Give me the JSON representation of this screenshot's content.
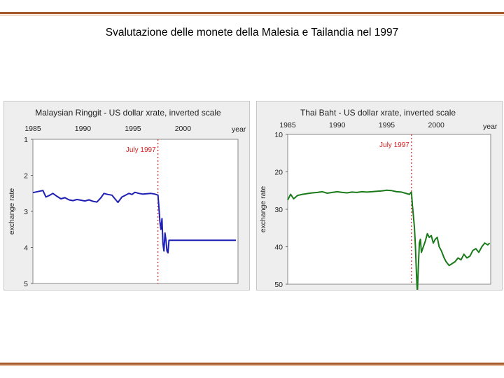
{
  "slide": {
    "title": "Svalutazione delle monete della Malesia e Tailandia nel 1997"
  },
  "colors": {
    "rule_dark": "#a65a2a",
    "rule_light": "#d9956a",
    "ringgit_line": "#1f1fb4",
    "baht_line": "#1a7a1a",
    "event_line": "#d62020",
    "panel_bg": "#eeeeee"
  },
  "chart_data": [
    {
      "type": "line",
      "title": "Malaysian Ringgit - US dollar xrate, inverted scale",
      "xlabel": "year",
      "ylabel": "exchange rate",
      "x_ticks": [
        "1985",
        "1990",
        "1995",
        "2000"
      ],
      "y_ticks": [
        "1",
        "2",
        "3",
        "4",
        "5"
      ],
      "xlim": [
        1985,
        2005.5
      ],
      "ylim": [
        1,
        5
      ],
      "y_inverted": true,
      "grid": false,
      "annotation": {
        "text": "July 1997",
        "x": 1997.5
      },
      "series": [
        {
          "x": [
            1985.0,
            1985.5,
            1986.0,
            1986.3,
            1986.7,
            1987.0,
            1987.4,
            1987.8,
            1988.2,
            1988.6,
            1989.0,
            1989.4,
            1989.8,
            1990.2,
            1990.6,
            1991.0,
            1991.4,
            1991.8,
            1992.1,
            1992.5,
            1992.9,
            1993.2,
            1993.5,
            1993.9,
            1994.2,
            1994.6,
            1994.9,
            1995.2,
            1995.6,
            1996.0,
            1996.4,
            1996.8,
            1997.2,
            1997.5,
            1997.6,
            1997.7,
            1997.8,
            1997.9,
            1998.0,
            1998.1,
            1998.2,
            1998.3,
            1998.4,
            1998.5,
            1998.6,
            1998.7,
            1998.8,
            1999.0,
            2000.0,
            2001.0,
            2002.0,
            2003.0,
            2004.0,
            2005.3
          ],
          "y": [
            2.48,
            2.45,
            2.42,
            2.6,
            2.55,
            2.5,
            2.58,
            2.65,
            2.62,
            2.68,
            2.7,
            2.67,
            2.69,
            2.71,
            2.68,
            2.72,
            2.74,
            2.62,
            2.5,
            2.53,
            2.55,
            2.65,
            2.75,
            2.6,
            2.56,
            2.5,
            2.53,
            2.47,
            2.5,
            2.52,
            2.51,
            2.5,
            2.52,
            2.55,
            2.9,
            3.3,
            3.5,
            3.2,
            3.9,
            4.1,
            3.6,
            3.8,
            4.1,
            4.15,
            3.8,
            3.8,
            3.8,
            3.8,
            3.8,
            3.8,
            3.8,
            3.8,
            3.8,
            3.8
          ]
        }
      ]
    },
    {
      "type": "line",
      "title": "Thai Baht - US dollar xrate, inverted scale",
      "xlabel": "year",
      "ylabel": "exchange rate",
      "x_ticks": [
        "1985",
        "1990",
        "1995",
        "2000"
      ],
      "y_ticks": [
        "10",
        "20",
        "30",
        "40",
        "50"
      ],
      "xlim": [
        1985,
        2005.5
      ],
      "ylim": [
        10,
        50
      ],
      "y_inverted": true,
      "grid": false,
      "annotation": {
        "text": "July 1997",
        "x": 1997.5
      },
      "series": [
        {
          "x": [
            1985.0,
            1985.3,
            1985.6,
            1986.0,
            1986.5,
            1987.0,
            1987.5,
            1988.0,
            1988.5,
            1989.0,
            1989.5,
            1990.0,
            1990.5,
            1991.0,
            1991.5,
            1992.0,
            1992.5,
            1993.0,
            1993.5,
            1994.0,
            1994.5,
            1995.0,
            1995.5,
            1996.0,
            1996.5,
            1997.0,
            1997.3,
            1997.45,
            1997.5,
            1997.6,
            1997.7,
            1997.8,
            1997.9,
            1998.0,
            1998.05,
            1998.1,
            1998.2,
            1998.3,
            1998.4,
            1998.5,
            1998.7,
            1998.9,
            1999.1,
            1999.3,
            1999.5,
            1999.7,
            1999.9,
            2000.1,
            2000.3,
            2000.5,
            2000.8,
            2001.0,
            2001.3,
            2001.6,
            2001.9,
            2002.2,
            2002.5,
            2002.8,
            2003.1,
            2003.4,
            2003.7,
            2004.0,
            2004.3,
            2004.6,
            2004.9,
            2005.2,
            2005.4
          ],
          "y": [
            27.5,
            26.0,
            27.2,
            26.3,
            26.0,
            25.8,
            25.6,
            25.5,
            25.3,
            25.7,
            25.5,
            25.3,
            25.5,
            25.6,
            25.4,
            25.5,
            25.3,
            25.4,
            25.3,
            25.2,
            25.1,
            24.9,
            25.0,
            25.3,
            25.4,
            25.8,
            26.0,
            25.5,
            25.5,
            29.0,
            32.0,
            35.0,
            40.0,
            47.0,
            50.0,
            52.0,
            45.0,
            39.0,
            38.0,
            41.5,
            40.0,
            38.5,
            36.5,
            37.5,
            37.0,
            39.0,
            38.0,
            37.5,
            40.0,
            41.0,
            43.0,
            44.0,
            45.0,
            44.5,
            44.0,
            43.0,
            43.5,
            42.0,
            43.0,
            42.5,
            41.0,
            40.5,
            41.5,
            40.0,
            39.0,
            39.5,
            39.0
          ]
        }
      ]
    }
  ]
}
